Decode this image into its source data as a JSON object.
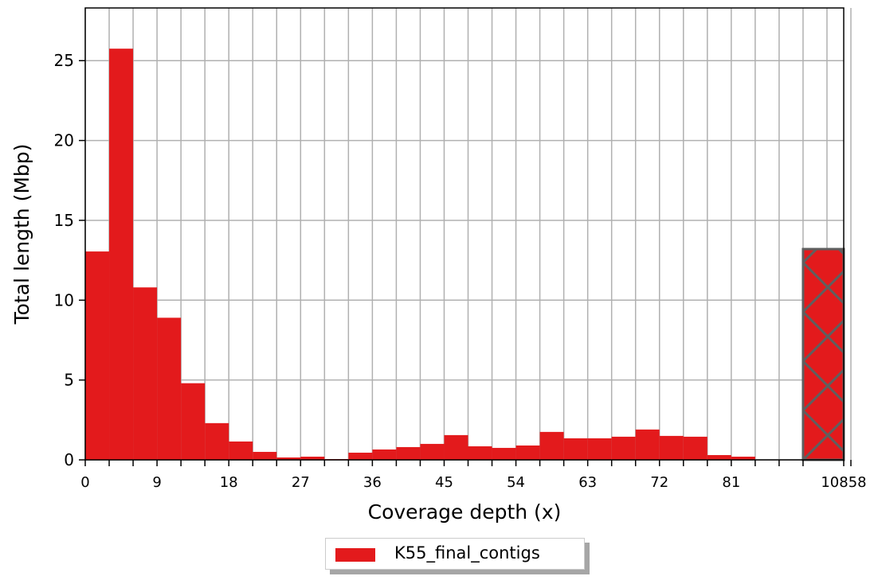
{
  "chart_data": {
    "type": "bar",
    "title": "",
    "xlabel": "Coverage depth (x)",
    "ylabel": "Total length (Mbp)",
    "ylim": [
      0,
      28.3
    ],
    "xlim": [
      0,
      93
    ],
    "bin_width": 3,
    "x_ticks": [
      "0",
      "9",
      "18",
      "27",
      "36",
      "45",
      "54",
      "63",
      "72",
      "81",
      "10858"
    ],
    "y_ticks": [
      0,
      5,
      10,
      15,
      20,
      25
    ],
    "grid": true,
    "legend_position": "bottom-center",
    "series": [
      {
        "name": "K55_final_contigs",
        "color": "#e31a1c",
        "bins_start": [
          0,
          3,
          6,
          9,
          12,
          15,
          18,
          21,
          24,
          27,
          30,
          33,
          36,
          39,
          42,
          45,
          48,
          51,
          54,
          57,
          60,
          63,
          66,
          69,
          72,
          75,
          78,
          81,
          84
        ],
        "values": [
          13.05,
          25.75,
          10.8,
          8.9,
          4.8,
          2.3,
          1.15,
          0.5,
          0.15,
          0.2,
          0.05,
          0.45,
          0.65,
          0.8,
          1.0,
          1.55,
          0.85,
          0.75,
          0.9,
          1.75,
          1.35,
          1.35,
          1.45,
          1.9,
          1.5,
          1.45,
          0.3,
          0.2,
          0.0
        ]
      }
    ],
    "overflow_bin": {
      "label": "10858",
      "value": 13.2,
      "hatch": "cross",
      "color": "#e31a1c"
    }
  }
}
